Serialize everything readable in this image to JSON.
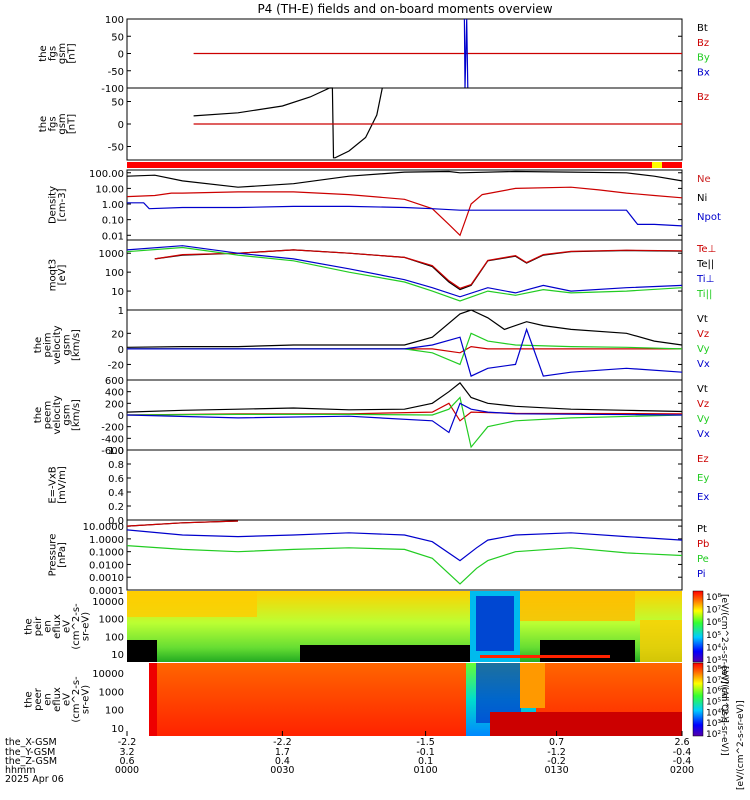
{
  "title": "P4 (TH-E) fields and on-board moments overview",
  "colors": {
    "black": "#000000",
    "red": "#cc0000",
    "green": "#22cc22",
    "blue": "#0000cc",
    "yellow": "#ffff00",
    "ne": "#cc2222"
  },
  "chart_data": [
    {
      "type": "line",
      "panel": "fgs_gsm_1",
      "ylabel_lines": [
        "the",
        "fgs",
        "gsm",
        "[nT]"
      ],
      "ylim": [
        -100,
        100
      ],
      "y_ticks": [
        "100",
        "50",
        "0",
        "-50",
        "-100"
      ],
      "legend": [
        {
          "text": "Bt",
          "color": "black"
        },
        {
          "text": "Bz",
          "color": "red"
        },
        {
          "text": "By",
          "color": "green"
        },
        {
          "text": "Bx",
          "color": "blue"
        }
      ],
      "series": [
        {
          "name": "Bz",
          "color": "red",
          "x": [
            0.12,
            1.0
          ],
          "y": [
            0,
            0
          ]
        },
        {
          "name": "Bx",
          "color": "blue",
          "x": [
            0.608,
            0.609,
            0.612,
            0.614
          ],
          "y": [
            100,
            -100,
            100,
            -100
          ]
        }
      ]
    },
    {
      "type": "line",
      "panel": "fgs_gsm_2",
      "ylabel_lines": [
        "the",
        "fgs",
        "gsm",
        "[nT]"
      ],
      "ylim": [
        -80,
        80
      ],
      "y_ticks": [
        "50",
        "0",
        "-50"
      ],
      "legend": [
        {
          "text": "Bz",
          "color": "red"
        }
      ],
      "series": [
        {
          "name": "Bt",
          "color": "black",
          "x": [
            0.12,
            0.2,
            0.28,
            0.33,
            0.365,
            0.37,
            0.372,
            0.375,
            0.4,
            0.43,
            0.45,
            0.46
          ],
          "y": [
            18,
            25,
            40,
            60,
            80,
            80,
            -75,
            -75,
            -60,
            -30,
            20,
            80
          ]
        },
        {
          "name": "Bz",
          "color": "red",
          "x": [
            0.12,
            1.0
          ],
          "y": [
            0,
            0
          ]
        }
      ]
    },
    {
      "type": "line",
      "panel": "density",
      "scale": "log",
      "ylabel_lines": [
        "Density",
        "[cm-3]"
      ],
      "ylim": [
        0.005,
        150
      ],
      "y_ticks": [
        "100.00",
        "10.00",
        "1.00",
        "0.10",
        "0.01"
      ],
      "legend": [
        {
          "text": "Ne",
          "color": "ne"
        },
        {
          "text": "Ni",
          "color": "black"
        },
        {
          "text": "Npot",
          "color": "blue"
        }
      ],
      "series": [
        {
          "name": "Ni",
          "color": "black",
          "x": [
            0.0,
            0.05,
            0.1,
            0.2,
            0.3,
            0.4,
            0.5,
            0.58,
            0.6,
            0.7,
            0.8,
            0.9,
            0.95,
            1.0
          ],
          "y": [
            60,
            70,
            30,
            12,
            20,
            60,
            110,
            120,
            100,
            120,
            110,
            100,
            60,
            30
          ]
        },
        {
          "name": "Ne",
          "color": "red",
          "x": [
            0.0,
            0.05,
            0.08,
            0.1,
            0.2,
            0.3,
            0.4,
            0.5,
            0.55,
            0.58,
            0.6,
            0.61,
            0.62,
            0.64,
            0.7,
            0.8,
            0.85,
            0.9,
            0.95,
            1.0
          ],
          "y": [
            3,
            3.5,
            5,
            5,
            6,
            6,
            4,
            2,
            0.5,
            0.05,
            0.01,
            0.1,
            1,
            4,
            10,
            12,
            8,
            5,
            3.5,
            2.5
          ]
        },
        {
          "name": "Npot",
          "color": "blue",
          "x": [
            0.0,
            0.03,
            0.04,
            0.1,
            0.2,
            0.3,
            0.4,
            0.5,
            0.55,
            0.6,
            0.7,
            0.8,
            0.9,
            0.92,
            0.95,
            1.0
          ],
          "y": [
            1.2,
            1.2,
            0.5,
            0.6,
            0.6,
            0.7,
            0.7,
            0.6,
            0.5,
            0.4,
            0.4,
            0.4,
            0.4,
            0.05,
            0.05,
            0.04
          ]
        }
      ]
    },
    {
      "type": "line",
      "panel": "temperature",
      "scale": "log",
      "ylabel_lines": [
        "moqt3",
        "[eV]"
      ],
      "ylim": [
        1,
        5000
      ],
      "y_ticks": [
        "1000",
        "100",
        "10",
        "1"
      ],
      "legend": [
        {
          "text": "Te⊥",
          "color": "red"
        },
        {
          "text": "Te||",
          "color": "black"
        },
        {
          "text": "Ti⊥",
          "color": "blue"
        },
        {
          "text": "Ti||",
          "color": "green"
        }
      ],
      "series": [
        {
          "name": "Te||",
          "color": "black",
          "x": [
            0.05,
            0.1,
            0.2,
            0.3,
            0.4,
            0.5,
            0.55,
            0.58,
            0.6,
            0.62,
            0.65,
            0.7,
            0.72,
            0.75,
            0.8,
            0.9,
            1.0
          ],
          "y": [
            500,
            800,
            1000,
            1500,
            1000,
            600,
            200,
            30,
            12,
            20,
            400,
            700,
            300,
            800,
            1200,
            1400,
            1300
          ]
        },
        {
          "name": "Te⊥",
          "color": "red",
          "x": [
            0.05,
            0.1,
            0.2,
            0.3,
            0.4,
            0.5,
            0.55,
            0.58,
            0.6,
            0.62,
            0.65,
            0.7,
            0.72,
            0.75,
            0.8,
            0.9,
            1.0
          ],
          "y": [
            500,
            850,
            1000,
            1500,
            1000,
            600,
            220,
            35,
            14,
            22,
            420,
            750,
            320,
            850,
            1250,
            1450,
            1350
          ]
        },
        {
          "name": "Ti⊥",
          "color": "blue",
          "x": [
            0.0,
            0.1,
            0.2,
            0.3,
            0.4,
            0.5,
            0.55,
            0.6,
            0.65,
            0.7,
            0.75,
            0.8,
            0.9,
            1.0
          ],
          "y": [
            1500,
            2500,
            1000,
            500,
            150,
            40,
            15,
            5,
            15,
            8,
            20,
            10,
            15,
            20
          ]
        },
        {
          "name": "Ti||",
          "color": "green",
          "x": [
            0.0,
            0.1,
            0.2,
            0.3,
            0.4,
            0.5,
            0.55,
            0.6,
            0.65,
            0.7,
            0.75,
            0.8,
            0.9,
            1.0
          ],
          "y": [
            1200,
            2000,
            800,
            400,
            100,
            30,
            10,
            3,
            10,
            6,
            12,
            8,
            10,
            15
          ]
        }
      ]
    },
    {
      "type": "line",
      "panel": "peim_velocity",
      "ylabel_lines": [
        "the",
        "peim",
        "velocity",
        "gsm",
        "[km/s]"
      ],
      "ylim": [
        -40,
        50
      ],
      "y_ticks": [
        "20",
        "0",
        "-20"
      ],
      "legend": [
        {
          "text": "Vt",
          "color": "black"
        },
        {
          "text": "Vz",
          "color": "red"
        },
        {
          "text": "Vy",
          "color": "green"
        },
        {
          "text": "Vx",
          "color": "blue"
        }
      ],
      "series": [
        {
          "name": "Vt",
          "color": "black",
          "x": [
            0.0,
            0.1,
            0.2,
            0.3,
            0.4,
            0.5,
            0.55,
            0.6,
            0.62,
            0.65,
            0.68,
            0.72,
            0.75,
            0.8,
            0.9,
            0.95,
            1.0
          ],
          "y": [
            2,
            3,
            3,
            5,
            5,
            5,
            15,
            45,
            50,
            40,
            25,
            35,
            30,
            25,
            20,
            10,
            5
          ]
        },
        {
          "name": "Vz",
          "color": "red",
          "x": [
            0.0,
            0.5,
            0.55,
            0.6,
            0.62,
            0.65,
            1.0
          ],
          "y": [
            0,
            0,
            0,
            -5,
            3,
            0,
            0
          ]
        },
        {
          "name": "Vy",
          "color": "green",
          "x": [
            0.0,
            0.5,
            0.55,
            0.6,
            0.62,
            0.65,
            0.7,
            0.8,
            0.9,
            1.0
          ],
          "y": [
            0,
            0,
            -5,
            -20,
            20,
            10,
            5,
            3,
            2,
            0
          ]
        },
        {
          "name": "Vx",
          "color": "blue",
          "x": [
            0.0,
            0.5,
            0.55,
            0.6,
            0.62,
            0.65,
            0.7,
            0.72,
            0.75,
            0.8,
            0.9,
            1.0
          ],
          "y": [
            0,
            0,
            5,
            15,
            -35,
            -25,
            -20,
            25,
            -35,
            -30,
            -25,
            -30
          ]
        }
      ]
    },
    {
      "type": "line",
      "panel": "peem_velocity",
      "ylabel_lines": [
        "the",
        "peem",
        "velocity",
        "gsm",
        "[km/s]"
      ],
      "ylim": [
        -600,
        600
      ],
      "y_ticks": [
        "600",
        "400",
        "200",
        "0",
        "-200",
        "-400",
        "-600"
      ],
      "legend": [
        {
          "text": "Vt",
          "color": "black"
        },
        {
          "text": "Vz",
          "color": "red"
        },
        {
          "text": "Vy",
          "color": "green"
        },
        {
          "text": "Vx",
          "color": "blue"
        }
      ],
      "series": [
        {
          "name": "Vt",
          "color": "black",
          "x": [
            0.0,
            0.1,
            0.2,
            0.3,
            0.4,
            0.5,
            0.55,
            0.58,
            0.6,
            0.62,
            0.65,
            0.7,
            0.8,
            0.9,
            1.0
          ],
          "y": [
            50,
            80,
            100,
            120,
            90,
            100,
            200,
            400,
            550,
            300,
            200,
            150,
            100,
            80,
            60
          ]
        },
        {
          "name": "Vz",
          "color": "red",
          "x": [
            0.0,
            0.2,
            0.4,
            0.55,
            0.58,
            0.6,
            0.62,
            0.7,
            1.0
          ],
          "y": [
            0,
            20,
            20,
            50,
            200,
            -100,
            50,
            30,
            20
          ]
        },
        {
          "name": "Vy",
          "color": "green",
          "x": [
            0.0,
            0.2,
            0.4,
            0.55,
            0.58,
            0.6,
            0.62,
            0.65,
            0.7,
            0.8,
            1.0
          ],
          "y": [
            0,
            10,
            10,
            0,
            100,
            300,
            -550,
            -200,
            -100,
            -50,
            0
          ]
        },
        {
          "name": "Vx",
          "color": "blue",
          "x": [
            0.0,
            0.2,
            0.4,
            0.55,
            0.58,
            0.6,
            0.62,
            0.65,
            0.7,
            1.0
          ],
          "y": [
            0,
            -50,
            -20,
            -100,
            -300,
            200,
            100,
            50,
            20,
            0
          ]
        }
      ]
    },
    {
      "type": "line",
      "panel": "efield",
      "ylabel_lines": [
        "E=-VxB",
        "[mV/m]"
      ],
      "ylim": [
        0,
        1.0
      ],
      "y_ticks": [
        "1.0",
        "0.8",
        "0.6",
        "0.4",
        "0.2",
        "0.0"
      ],
      "legend": [
        {
          "text": "Ez",
          "color": "red"
        },
        {
          "text": "Ey",
          "color": "green"
        },
        {
          "text": "Ex",
          "color": "blue"
        }
      ],
      "series": []
    },
    {
      "type": "line",
      "panel": "pressure",
      "scale": "log",
      "ylabel_lines": [
        "Pressure",
        "[nPa]"
      ],
      "ylim": [
        0.0001,
        30
      ],
      "y_ticks": [
        "10.0000",
        "1.0000",
        "0.1000",
        "0.0100",
        "0.0010",
        "0.0001"
      ],
      "legend": [
        {
          "text": "Pt",
          "color": "black"
        },
        {
          "text": "Pb",
          "color": "red"
        },
        {
          "text": "Pe",
          "color": "green"
        },
        {
          "text": "Pi",
          "color": "blue"
        }
      ],
      "series": [
        {
          "name": "Pt",
          "color": "black",
          "x": [
            0.0,
            0.1,
            0.2
          ],
          "y": [
            10,
            18,
            25
          ]
        },
        {
          "name": "Pb",
          "color": "red",
          "x": [
            0.0,
            0.1,
            0.2
          ],
          "y": [
            10,
            18,
            25
          ]
        },
        {
          "name": "Pi",
          "color": "blue",
          "x": [
            0.0,
            0.1,
            0.2,
            0.3,
            0.4,
            0.5,
            0.55,
            0.6,
            0.63,
            0.65,
            0.7,
            0.8,
            0.9,
            1.0
          ],
          "y": [
            5,
            2,
            1.5,
            2,
            3,
            2,
            0.6,
            0.02,
            0.2,
            0.8,
            2,
            3,
            1.5,
            0.8
          ]
        },
        {
          "name": "Pe",
          "color": "green",
          "x": [
            0.0,
            0.1,
            0.2,
            0.3,
            0.4,
            0.5,
            0.55,
            0.6,
            0.63,
            0.65,
            0.7,
            0.8,
            0.9,
            1.0
          ],
          "y": [
            0.3,
            0.15,
            0.1,
            0.15,
            0.2,
            0.15,
            0.03,
            0.0003,
            0.005,
            0.02,
            0.1,
            0.2,
            0.08,
            0.05
          ]
        }
      ]
    },
    {
      "type": "heatmap",
      "panel": "peir_spectrogram",
      "ylabel_lines": [
        "the",
        "peir",
        "en",
        "eflux",
        "eV",
        "(cm^2-s-",
        "sr-eV)"
      ],
      "y_ticks": [
        "10000",
        "1000",
        "100",
        "10"
      ],
      "colorbar_ticks": [
        "10⁸",
        "10⁷",
        "10⁶",
        "10⁵",
        "10⁴",
        "10³"
      ],
      "colorbar_label": "[eV/(cm^2-s-sr-eV)] (All Qs)]"
    },
    {
      "type": "heatmap",
      "panel": "peer_spectrogram",
      "ylabel_lines": [
        "the",
        "peer",
        "en",
        "eflux",
        "eV",
        "(cm^2-s-",
        "sr-eV)"
      ],
      "y_ticks": [
        "10000",
        "1000",
        "100",
        "10"
      ],
      "colorbar_ticks": [
        "10⁸",
        "10⁷",
        "10⁶",
        "10⁵",
        "10⁴",
        "10³",
        "10²"
      ],
      "colorbar_label": "[eV/(cm^2-s-sr-eV)]"
    }
  ],
  "x_axis": {
    "row_labels": [
      "the_X-GSM",
      "the_Y-GSM",
      "the_Z-GSM",
      "hhmm",
      "2025 Apr 06"
    ],
    "ticks": [
      {
        "x": 0.0,
        "values": [
          "-2.2",
          "3.2",
          "0.6",
          "0000"
        ]
      },
      {
        "x": 0.28,
        "values": [
          "-2.2",
          "1.7",
          "0.4",
          "0030"
        ]
      },
      {
        "x": 0.538,
        "values": [
          "-1.5",
          "-0.1",
          "0.1",
          "0100"
        ]
      },
      {
        "x": 0.774,
        "values": [
          "0.7",
          "-1.2",
          "-0.2",
          "0130"
        ]
      },
      {
        "x": 1.0,
        "values": [
          "2.6",
          "-0.4",
          "-0.4",
          "0200"
        ]
      }
    ]
  },
  "bottom_right_label": "[eV/(cm^2-s-sr-eV)]"
}
